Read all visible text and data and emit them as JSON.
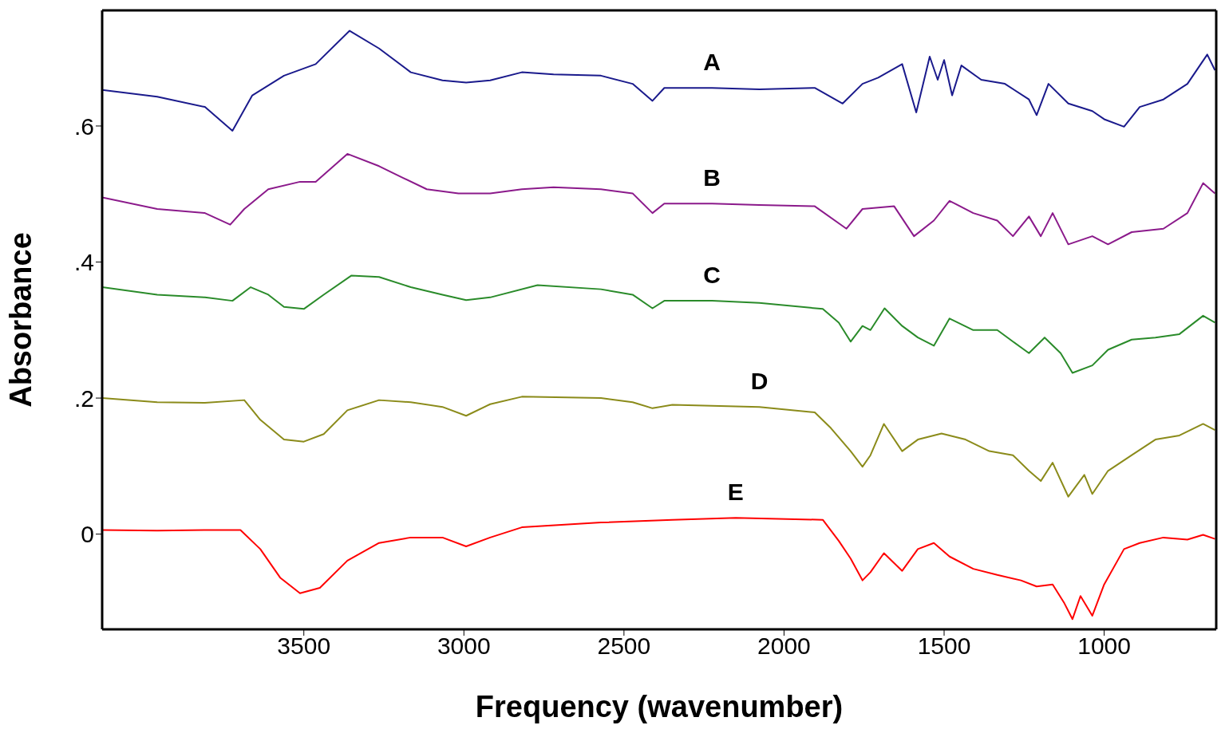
{
  "chart_data": {
    "type": "line",
    "xlabel": "Frequency (wavenumber)",
    "ylabel": "Absorbance",
    "xlim": [
      4130,
      650
    ],
    "xticks": [
      3500,
      3000,
      2500,
      2000,
      1500,
      1000
    ],
    "ylim": [
      -0.14,
      0.77
    ],
    "yticks": [
      0,
      {
        "value": 0.2,
        "label": ".2"
      },
      {
        "value": 0.4,
        "label": ".4"
      },
      {
        "value": 0.6,
        "label": ".6"
      }
    ],
    "legend": false,
    "marker": "none",
    "line_style": "solid",
    "series": [
      {
        "name": "A",
        "color": "#1a1a8c",
        "x": [
          4130,
          3958,
          3809,
          3723,
          3661,
          3562,
          3463,
          3357,
          3265,
          3166,
          3067,
          2993,
          2918,
          2819,
          2720,
          2572,
          2473,
          2411,
          2374,
          2225,
          2077,
          1904,
          1817,
          1755,
          1706,
          1631,
          1587,
          1545,
          1520,
          1500,
          1475,
          1446,
          1384,
          1310,
          1235,
          1211,
          1174,
          1112,
          1037,
          1000,
          938,
          889,
          815,
          740,
          678,
          654
        ],
        "values": [
          0.653,
          0.643,
          0.628,
          0.593,
          0.645,
          0.674,
          0.691,
          0.74,
          0.714,
          0.679,
          0.667,
          0.664,
          0.667,
          0.679,
          0.676,
          0.674,
          0.662,
          0.637,
          0.656,
          0.656,
          0.654,
          0.656,
          0.633,
          0.662,
          0.671,
          0.691,
          0.62,
          0.702,
          0.668,
          0.697,
          0.645,
          0.689,
          0.668,
          0.662,
          0.639,
          0.616,
          0.662,
          0.633,
          0.622,
          0.61,
          0.599,
          0.628,
          0.639,
          0.662,
          0.705,
          0.682
        ]
      },
      {
        "name": "B",
        "color": "#8b1a8b",
        "x": [
          4130,
          3958,
          3809,
          3730,
          3686,
          3611,
          3512,
          3463,
          3364,
          3265,
          3191,
          3116,
          3017,
          2918,
          2819,
          2720,
          2572,
          2473,
          2411,
          2374,
          2225,
          2077,
          1904,
          1805,
          1755,
          1656,
          1594,
          1532,
          1483,
          1409,
          1334,
          1285,
          1235,
          1198,
          1161,
          1112,
          1037,
          988,
          914,
          815,
          740,
          691,
          654
        ],
        "values": [
          0.495,
          0.478,
          0.472,
          0.455,
          0.478,
          0.507,
          0.518,
          0.518,
          0.559,
          0.541,
          0.524,
          0.507,
          0.501,
          0.501,
          0.507,
          0.51,
          0.507,
          0.501,
          0.472,
          0.486,
          0.486,
          0.484,
          0.482,
          0.449,
          0.478,
          0.482,
          0.438,
          0.461,
          0.49,
          0.472,
          0.461,
          0.438,
          0.467,
          0.438,
          0.472,
          0.426,
          0.438,
          0.426,
          0.444,
          0.449,
          0.472,
          0.516,
          0.501
        ]
      },
      {
        "name": "C",
        "color": "#2a8b2a",
        "x": [
          4130,
          3958,
          3809,
          3723,
          3666,
          3611,
          3562,
          3500,
          3438,
          3352,
          3265,
          3166,
          3067,
          2993,
          2918,
          2770,
          2572,
          2473,
          2411,
          2374,
          2225,
          2077,
          1879,
          1829,
          1792,
          1755,
          1730,
          1686,
          1631,
          1582,
          1532,
          1483,
          1409,
          1334,
          1285,
          1235,
          1186,
          1136,
          1099,
          1037,
          988,
          914,
          840,
          765,
          691,
          654
        ],
        "values": [
          0.363,
          0.352,
          0.348,
          0.343,
          0.363,
          0.352,
          0.334,
          0.331,
          0.352,
          0.38,
          0.378,
          0.363,
          0.352,
          0.344,
          0.348,
          0.366,
          0.36,
          0.352,
          0.332,
          0.343,
          0.343,
          0.34,
          0.331,
          0.311,
          0.283,
          0.306,
          0.3,
          0.332,
          0.306,
          0.289,
          0.277,
          0.317,
          0.3,
          0.3,
          0.283,
          0.266,
          0.289,
          0.266,
          0.237,
          0.248,
          0.271,
          0.286,
          0.289,
          0.294,
          0.321,
          0.311
        ]
      },
      {
        "name": "D",
        "color": "#8b8b1a",
        "x": [
          4130,
          3958,
          3809,
          3686,
          3636,
          3562,
          3500,
          3438,
          3364,
          3265,
          3166,
          3067,
          2993,
          2918,
          2819,
          2572,
          2473,
          2411,
          2349,
          2077,
          1904,
          1854,
          1792,
          1755,
          1730,
          1688,
          1631,
          1582,
          1508,
          1433,
          1359,
          1285,
          1235,
          1198,
          1161,
          1112,
          1062,
          1037,
          988,
          914,
          840,
          765,
          691,
          654
        ],
        "values": [
          0.2,
          0.194,
          0.193,
          0.197,
          0.168,
          0.139,
          0.136,
          0.147,
          0.182,
          0.197,
          0.194,
          0.187,
          0.174,
          0.191,
          0.202,
          0.2,
          0.194,
          0.185,
          0.19,
          0.187,
          0.179,
          0.156,
          0.122,
          0.099,
          0.116,
          0.162,
          0.122,
          0.139,
          0.148,
          0.139,
          0.122,
          0.116,
          0.093,
          0.078,
          0.105,
          0.055,
          0.087,
          0.059,
          0.093,
          0.116,
          0.139,
          0.145,
          0.162,
          0.153
        ]
      },
      {
        "name": "E",
        "color": "#ff0000",
        "x": [
          4130,
          3958,
          3809,
          3698,
          3636,
          3574,
          3512,
          3450,
          3364,
          3265,
          3166,
          3067,
          2993,
          2918,
          2819,
          2572,
          2349,
          2151,
          1879,
          1829,
          1792,
          1755,
          1730,
          1688,
          1631,
          1582,
          1532,
          1483,
          1409,
          1334,
          1260,
          1211,
          1161,
          1124,
          1099,
          1074,
          1037,
          1000,
          938,
          889,
          815,
          740,
          691,
          654
        ],
        "values": [
          0.006,
          0.005,
          0.006,
          0.006,
          -0.022,
          -0.064,
          -0.087,
          -0.079,
          -0.039,
          -0.013,
          -0.005,
          -0.005,
          -0.018,
          -0.005,
          0.01,
          0.017,
          0.021,
          0.024,
          0.021,
          -0.01,
          -0.036,
          -0.068,
          -0.056,
          -0.028,
          -0.054,
          -0.022,
          -0.013,
          -0.033,
          -0.051,
          -0.06,
          -0.068,
          -0.077,
          -0.074,
          -0.102,
          -0.125,
          -0.091,
          -0.12,
          -0.074,
          -0.022,
          -0.013,
          -0.005,
          -0.008,
          -0.001,
          -0.007
        ]
      }
    ]
  }
}
